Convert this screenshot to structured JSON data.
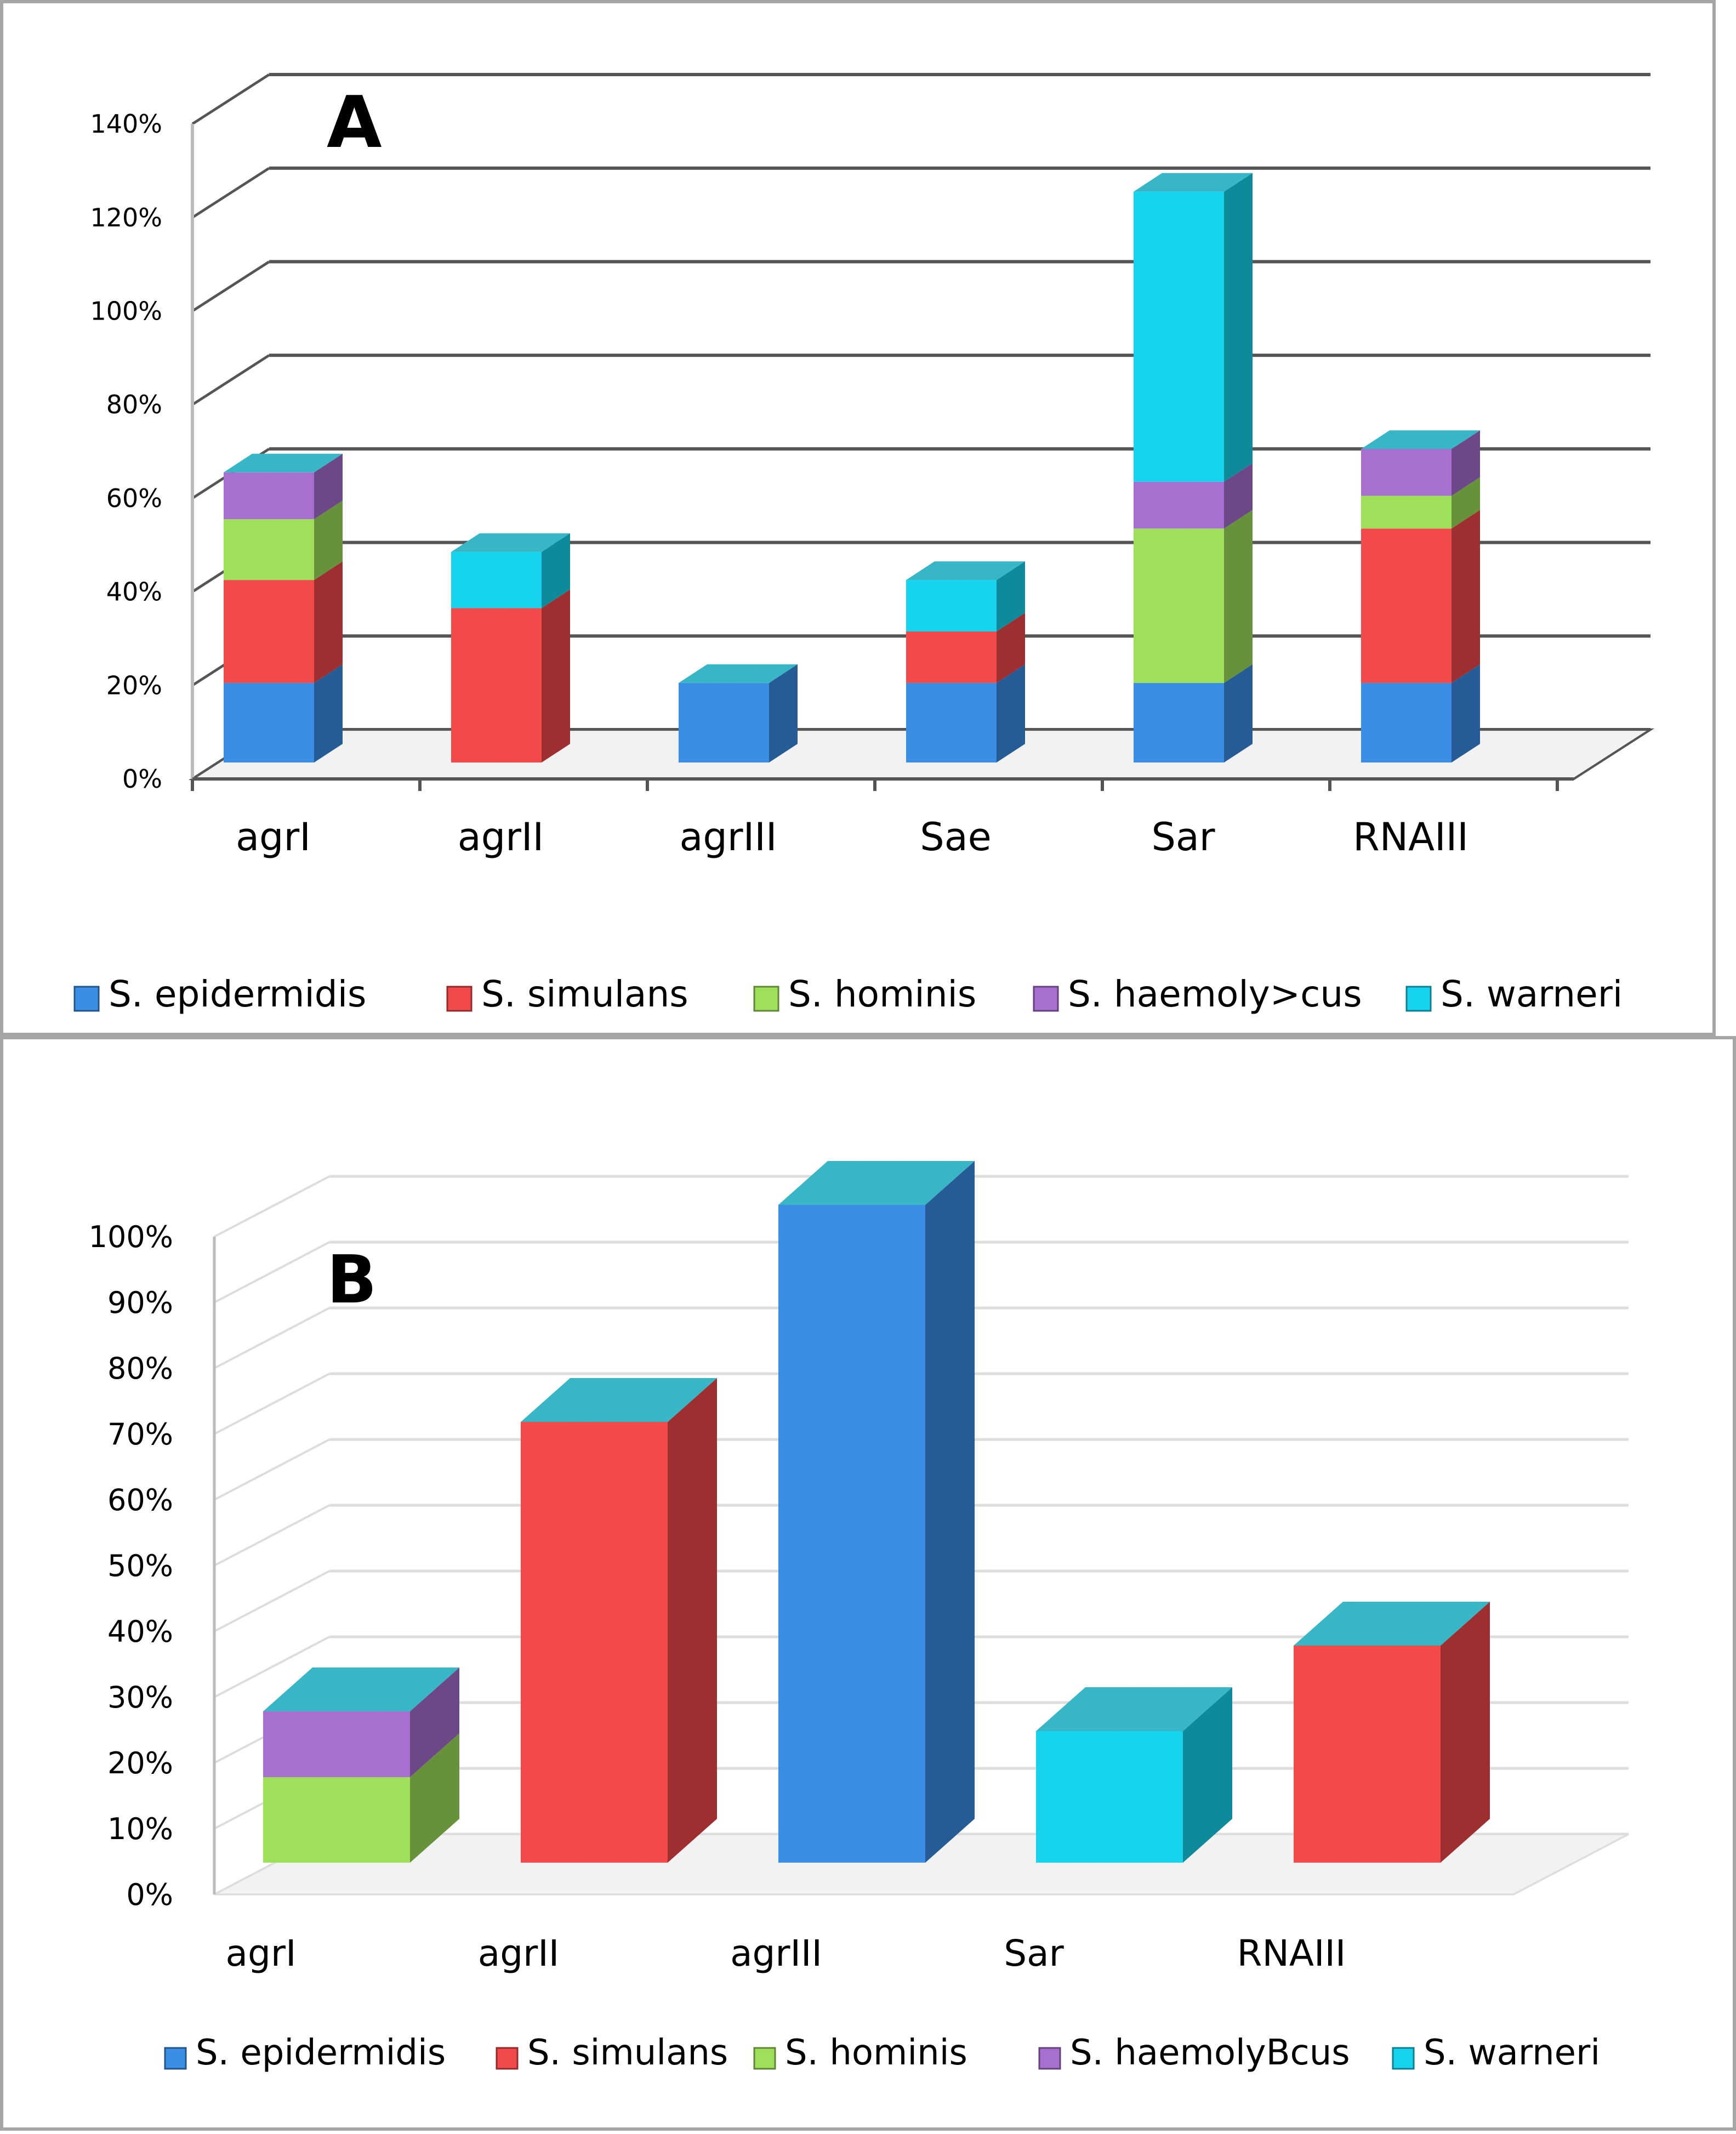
{
  "chart_data": [
    {
      "panel_label": "A",
      "type": "bar",
      "stacked": true,
      "three_d": true,
      "categories": [
        "agrI",
        "agrII",
        "agrIII",
        "Sae",
        "Sar",
        "RNAIII"
      ],
      "series": [
        {
          "name": "S. epidermidis",
          "values": [
            17,
            0,
            17,
            17,
            17,
            17
          ]
        },
        {
          "name": "S. simulans",
          "values": [
            22,
            33,
            0,
            11,
            0,
            33
          ]
        },
        {
          "name": "S. hominis",
          "values": [
            13,
            0,
            0,
            0,
            33,
            7
          ]
        },
        {
          "name": "S. haemoly>cus",
          "values": [
            10,
            0,
            0,
            0,
            10,
            10
          ]
        },
        {
          "name": "S. warneri",
          "values": [
            0,
            12,
            0,
            11,
            62,
            0
          ]
        }
      ],
      "y_ticks": [
        "0%",
        "20%",
        "40%",
        "60%",
        "80%",
        "100%",
        "120%",
        "140%"
      ],
      "ylim": [
        0,
        140
      ],
      "grid": true,
      "legend": "bottom"
    },
    {
      "panel_label": "B",
      "type": "bar",
      "stacked": true,
      "three_d": true,
      "categories": [
        "agrI",
        "agrII",
        "agrIII",
        "Sar",
        "RNAIII"
      ],
      "series": [
        {
          "name": "S. epidermidis",
          "values": [
            0,
            0,
            100,
            0,
            0
          ]
        },
        {
          "name": "S. simulans",
          "values": [
            0,
            67,
            0,
            0,
            33
          ]
        },
        {
          "name": "S. hominis",
          "values": [
            13,
            0,
            0,
            0,
            0
          ]
        },
        {
          "name": "S. haemolyBcus",
          "values": [
            10,
            0,
            0,
            0,
            0
          ]
        },
        {
          "name": "S. warneri",
          "values": [
            0,
            0,
            0,
            20,
            0
          ]
        }
      ],
      "y_ticks": [
        "0%",
        "10%",
        "20%",
        "30%",
        "40%",
        "50%",
        "60%",
        "70%",
        "80%",
        "90%",
        "100%"
      ],
      "ylim": [
        0,
        100
      ],
      "grid": true,
      "legend": "bottom"
    }
  ],
  "colors": {
    "epidermidis": "#3a8ee6",
    "simulans": "#f2494b",
    "hominis": "#9ee05a",
    "haemolyticus": "#a66fd0",
    "warneri": "#16d4ee",
    "top_cap": "#39b6c6",
    "grid": "#555555"
  }
}
